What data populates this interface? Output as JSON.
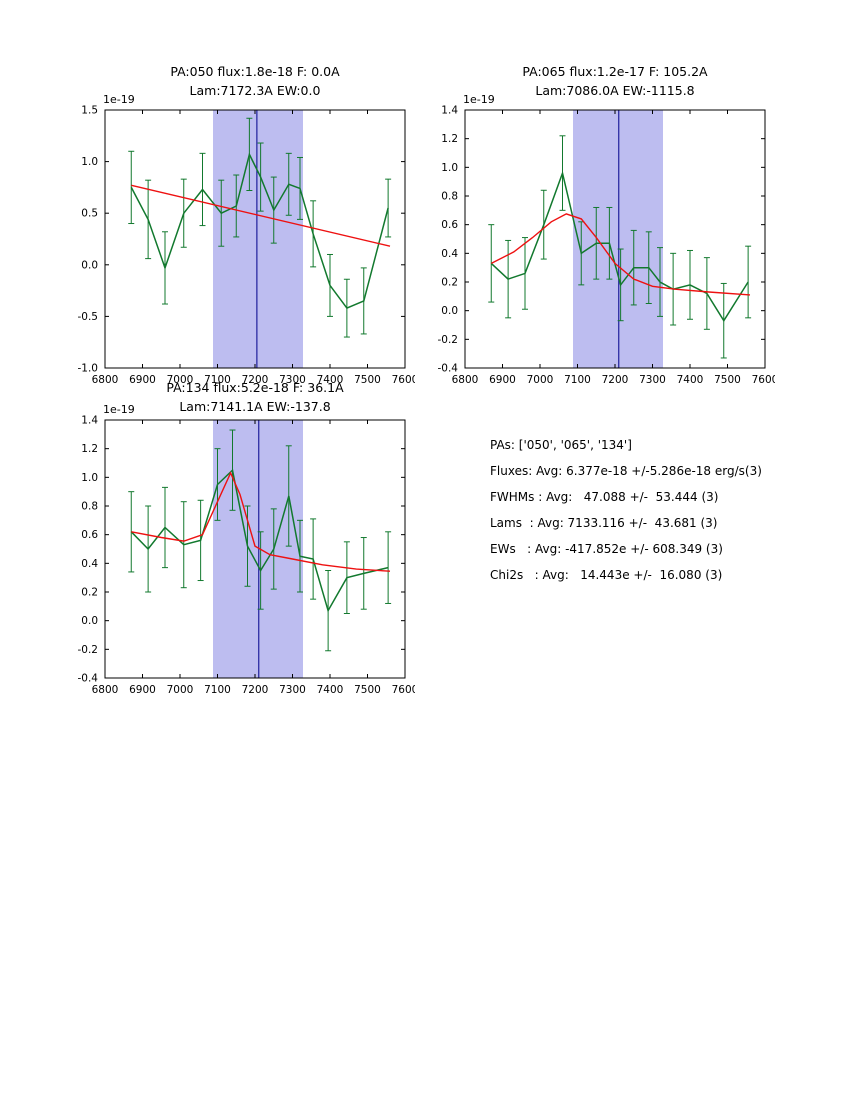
{
  "figure": {
    "background": "#ffffff"
  },
  "colors": {
    "data": "#12792e",
    "model": "#ee1111",
    "band": "#bdbdf0",
    "vline": "#1f1f9c",
    "axis": "#000000"
  },
  "chart_data": [
    {
      "type": "line",
      "title1": "PA:050 flux:1.8e-18 F: 0.0A",
      "title2": "Lam:7172.3A EW:0.0",
      "offset_label": "1e-19",
      "xlim": [
        6800,
        7600
      ],
      "ylim": [
        -1.0,
        1.5
      ],
      "xticks": [
        6800,
        6900,
        7000,
        7100,
        7200,
        7300,
        7400,
        7500,
        7600
      ],
      "xtick_labels": [
        "6800",
        "6900",
        "7000",
        "7100",
        "7200",
        "7300",
        "7400",
        "7500",
        "7600"
      ],
      "yticks": [
        -1.0,
        -0.5,
        0.0,
        0.5,
        1.0,
        1.5
      ],
      "ytick_labels": [
        "-1.0",
        "-0.5",
        "0.0",
        "0.5",
        "1.0",
        "1.5"
      ],
      "band": [
        7088,
        7328
      ],
      "vline": 7205,
      "legend": "off",
      "grid": "off",
      "series": [
        {
          "name": "spectrum-data",
          "x": [
            6870,
            6915,
            6960,
            7010,
            7060,
            7110,
            7150,
            7185,
            7215,
            7250,
            7290,
            7320,
            7355,
            7400,
            7445,
            7490,
            7555
          ],
          "y": [
            0.75,
            0.44,
            -0.03,
            0.5,
            0.73,
            0.5,
            0.57,
            1.07,
            0.85,
            0.53,
            0.78,
            0.74,
            0.3,
            -0.2,
            -0.42,
            -0.35,
            0.55
          ],
          "yerr": [
            0.35,
            0.38,
            0.35,
            0.33,
            0.35,
            0.32,
            0.3,
            0.35,
            0.33,
            0.32,
            0.3,
            0.3,
            0.32,
            0.3,
            0.28,
            0.32,
            0.28
          ]
        },
        {
          "name": "model-fit",
          "x": [
            6870,
            7560
          ],
          "y": [
            0.77,
            0.18
          ]
        }
      ]
    },
    {
      "type": "line",
      "title1": "PA:065 flux:1.2e-17 F: 105.2A",
      "title2": "Lam:7086.0A EW:-1115.8",
      "offset_label": "1e-19",
      "xlim": [
        6800,
        7600
      ],
      "ylim": [
        -0.4,
        1.4
      ],
      "xticks": [
        6800,
        6900,
        7000,
        7100,
        7200,
        7300,
        7400,
        7500,
        7600
      ],
      "xtick_labels": [
        "6800",
        "6900",
        "7000",
        "7100",
        "7200",
        "7300",
        "7400",
        "7500",
        "7600"
      ],
      "yticks": [
        -0.4,
        -0.2,
        0.0,
        0.2,
        0.4,
        0.6,
        0.8,
        1.0,
        1.2,
        1.4
      ],
      "ytick_labels": [
        "-0.4",
        "-0.2",
        "0.0",
        "0.2",
        "0.4",
        "0.6",
        "0.8",
        "1.0",
        "1.2",
        "1.4"
      ],
      "band": [
        7088,
        7328
      ],
      "vline": 7210,
      "legend": "off",
      "grid": "off",
      "series": [
        {
          "name": "spectrum-data",
          "x": [
            6870,
            6915,
            6960,
            7010,
            7060,
            7110,
            7150,
            7185,
            7215,
            7250,
            7290,
            7320,
            7355,
            7400,
            7445,
            7490,
            7555
          ],
          "y": [
            0.33,
            0.22,
            0.26,
            0.6,
            0.96,
            0.4,
            0.47,
            0.47,
            0.18,
            0.3,
            0.3,
            0.2,
            0.15,
            0.18,
            0.12,
            -0.07,
            0.2
          ],
          "yerr": [
            0.27,
            0.27,
            0.25,
            0.24,
            0.26,
            0.22,
            0.25,
            0.25,
            0.25,
            0.26,
            0.25,
            0.24,
            0.25,
            0.24,
            0.25,
            0.26,
            0.25
          ]
        },
        {
          "name": "model-fit",
          "x": [
            6870,
            6930,
            6980,
            7030,
            7070,
            7110,
            7150,
            7200,
            7250,
            7300,
            7360,
            7450,
            7560
          ],
          "y": [
            0.33,
            0.41,
            0.51,
            0.62,
            0.675,
            0.64,
            0.51,
            0.33,
            0.22,
            0.17,
            0.15,
            0.13,
            0.11
          ]
        }
      ]
    },
    {
      "type": "line",
      "title1": "PA:134 flux:5.2e-18 F: 36.1A",
      "title2": "Lam:7141.1A EW:-137.8",
      "offset_label": "1e-19",
      "xlim": [
        6800,
        7600
      ],
      "ylim": [
        -0.4,
        1.4
      ],
      "xticks": [
        6800,
        6900,
        7000,
        7100,
        7200,
        7300,
        7400,
        7500,
        7600
      ],
      "xtick_labels": [
        "6800",
        "6900",
        "7000",
        "7100",
        "7200",
        "7300",
        "7400",
        "7500",
        "7600"
      ],
      "yticks": [
        -0.4,
        -0.2,
        0.0,
        0.2,
        0.4,
        0.6,
        0.8,
        1.0,
        1.2,
        1.4
      ],
      "ytick_labels": [
        "-0.4",
        "-0.2",
        "0.0",
        "0.2",
        "0.4",
        "0.6",
        "0.8",
        "1.0",
        "1.2",
        "1.4"
      ],
      "band": [
        7088,
        7328
      ],
      "vline": 7210,
      "legend": "off",
      "grid": "off",
      "series": [
        {
          "name": "spectrum-data",
          "x": [
            6870,
            6915,
            6960,
            7010,
            7055,
            7100,
            7140,
            7180,
            7215,
            7250,
            7290,
            7320,
            7355,
            7395,
            7445,
            7490,
            7555
          ],
          "y": [
            0.62,
            0.5,
            0.65,
            0.53,
            0.56,
            0.95,
            1.05,
            0.52,
            0.35,
            0.5,
            0.87,
            0.45,
            0.43,
            0.07,
            0.3,
            0.33,
            0.37
          ],
          "yerr": [
            0.28,
            0.3,
            0.28,
            0.3,
            0.28,
            0.25,
            0.28,
            0.28,
            0.27,
            0.28,
            0.35,
            0.25,
            0.28,
            0.28,
            0.25,
            0.25,
            0.25
          ]
        },
        {
          "name": "model-fit",
          "x": [
            6870,
            6950,
            7010,
            7060,
            7100,
            7135,
            7160,
            7200,
            7240,
            7300,
            7380,
            7470,
            7560
          ],
          "y": [
            0.62,
            0.58,
            0.555,
            0.6,
            0.83,
            1.03,
            0.88,
            0.52,
            0.46,
            0.43,
            0.39,
            0.36,
            0.345
          ]
        }
      ]
    }
  ],
  "stats": {
    "lines": [
      "PAs: ['050', '065', '134']",
      "Fluxes: Avg: 6.377e-18 +/-5.286e-18 erg/s(3)",
      "FWHMs : Avg:   47.088 +/-  53.444 (3)",
      "Lams  : Avg: 7133.116 +/-  43.681 (3)",
      "EWs   : Avg: -417.852e +/- 608.349 (3)",
      "Chi2s   : Avg:   14.443e +/-  16.080 (3)"
    ]
  }
}
